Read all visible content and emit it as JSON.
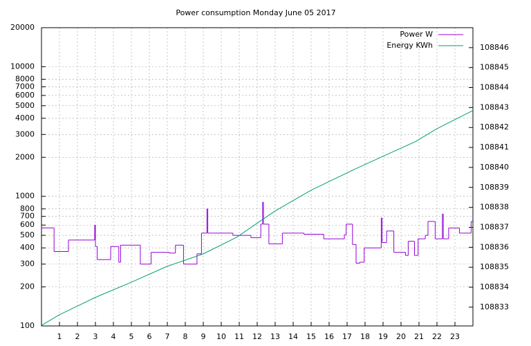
{
  "chart_data": {
    "type": "line",
    "title": "Power consumption Monday June 05 2017",
    "xlim": [
      0,
      24
    ],
    "xticks": [
      1,
      2,
      3,
      4,
      5,
      6,
      7,
      8,
      9,
      10,
      11,
      12,
      13,
      14,
      15,
      16,
      17,
      18,
      19,
      20,
      21,
      22,
      23
    ],
    "ylim": [
      100,
      20000
    ],
    "log_y": true,
    "yticks": [
      100,
      200,
      300,
      400,
      500,
      600,
      700,
      800,
      1000,
      2000,
      3000,
      4000,
      5000,
      6000,
      7000,
      8000,
      10000,
      20000
    ],
    "y2lim": [
      108832.06,
      108847.0
    ],
    "y2ticks": [
      108833,
      108834,
      108835,
      108836,
      108837,
      108838,
      108839,
      108840,
      108841,
      108842,
      108843,
      108844,
      108845,
      108846
    ],
    "grid": true,
    "legend": "top-right",
    "series": [
      {
        "name": "Power W",
        "color": "#9400d3",
        "style": "steps",
        "x": [
          0,
          0.7,
          1.5,
          2.96,
          3.0,
          3.1,
          3.85,
          4.3,
          4.4,
          5.5,
          6.1,
          7.1,
          7.45,
          7.9,
          8.65,
          8.9,
          9.2,
          9.25,
          10.65,
          11.65,
          12.2,
          12.3,
          12.35,
          12.65,
          13.4,
          14.6,
          15.7,
          16.85,
          16.95,
          17.3,
          17.5,
          17.7,
          17.95,
          18.9,
          18.95,
          19.2,
          19.6,
          20.25,
          20.4,
          20.75,
          20.95,
          21.35,
          21.5,
          21.9,
          22.3,
          22.35,
          22.65,
          23.25,
          23.9
        ],
        "values": [
          570,
          375,
          460,
          600,
          410,
          325,
          410,
          310,
          420,
          300,
          370,
          365,
          420,
          300,
          360,
          520,
          800,
          520,
          500,
          480,
          610,
          900,
          610,
          430,
          520,
          510,
          470,
          505,
          610,
          425,
          305,
          310,
          400,
          680,
          440,
          540,
          370,
          350,
          450,
          350,
          470,
          500,
          640,
          470,
          730,
          470,
          570,
          520,
          640
        ]
      },
      {
        "name": "Energy KWh",
        "color": "#009e73",
        "style": "lines",
        "axis": "y2",
        "x": [
          0,
          1,
          3,
          5,
          7,
          9,
          10.85,
          13,
          15,
          17.4,
          19,
          20.8,
          22,
          24
        ],
        "values": [
          108832.09,
          108832.62,
          108833.49,
          108834.25,
          108835.05,
          108835.67,
          108836.5,
          108837.82,
          108838.86,
          108839.9,
          108840.56,
          108841.29,
          108841.94,
          108842.85
        ]
      }
    ]
  }
}
